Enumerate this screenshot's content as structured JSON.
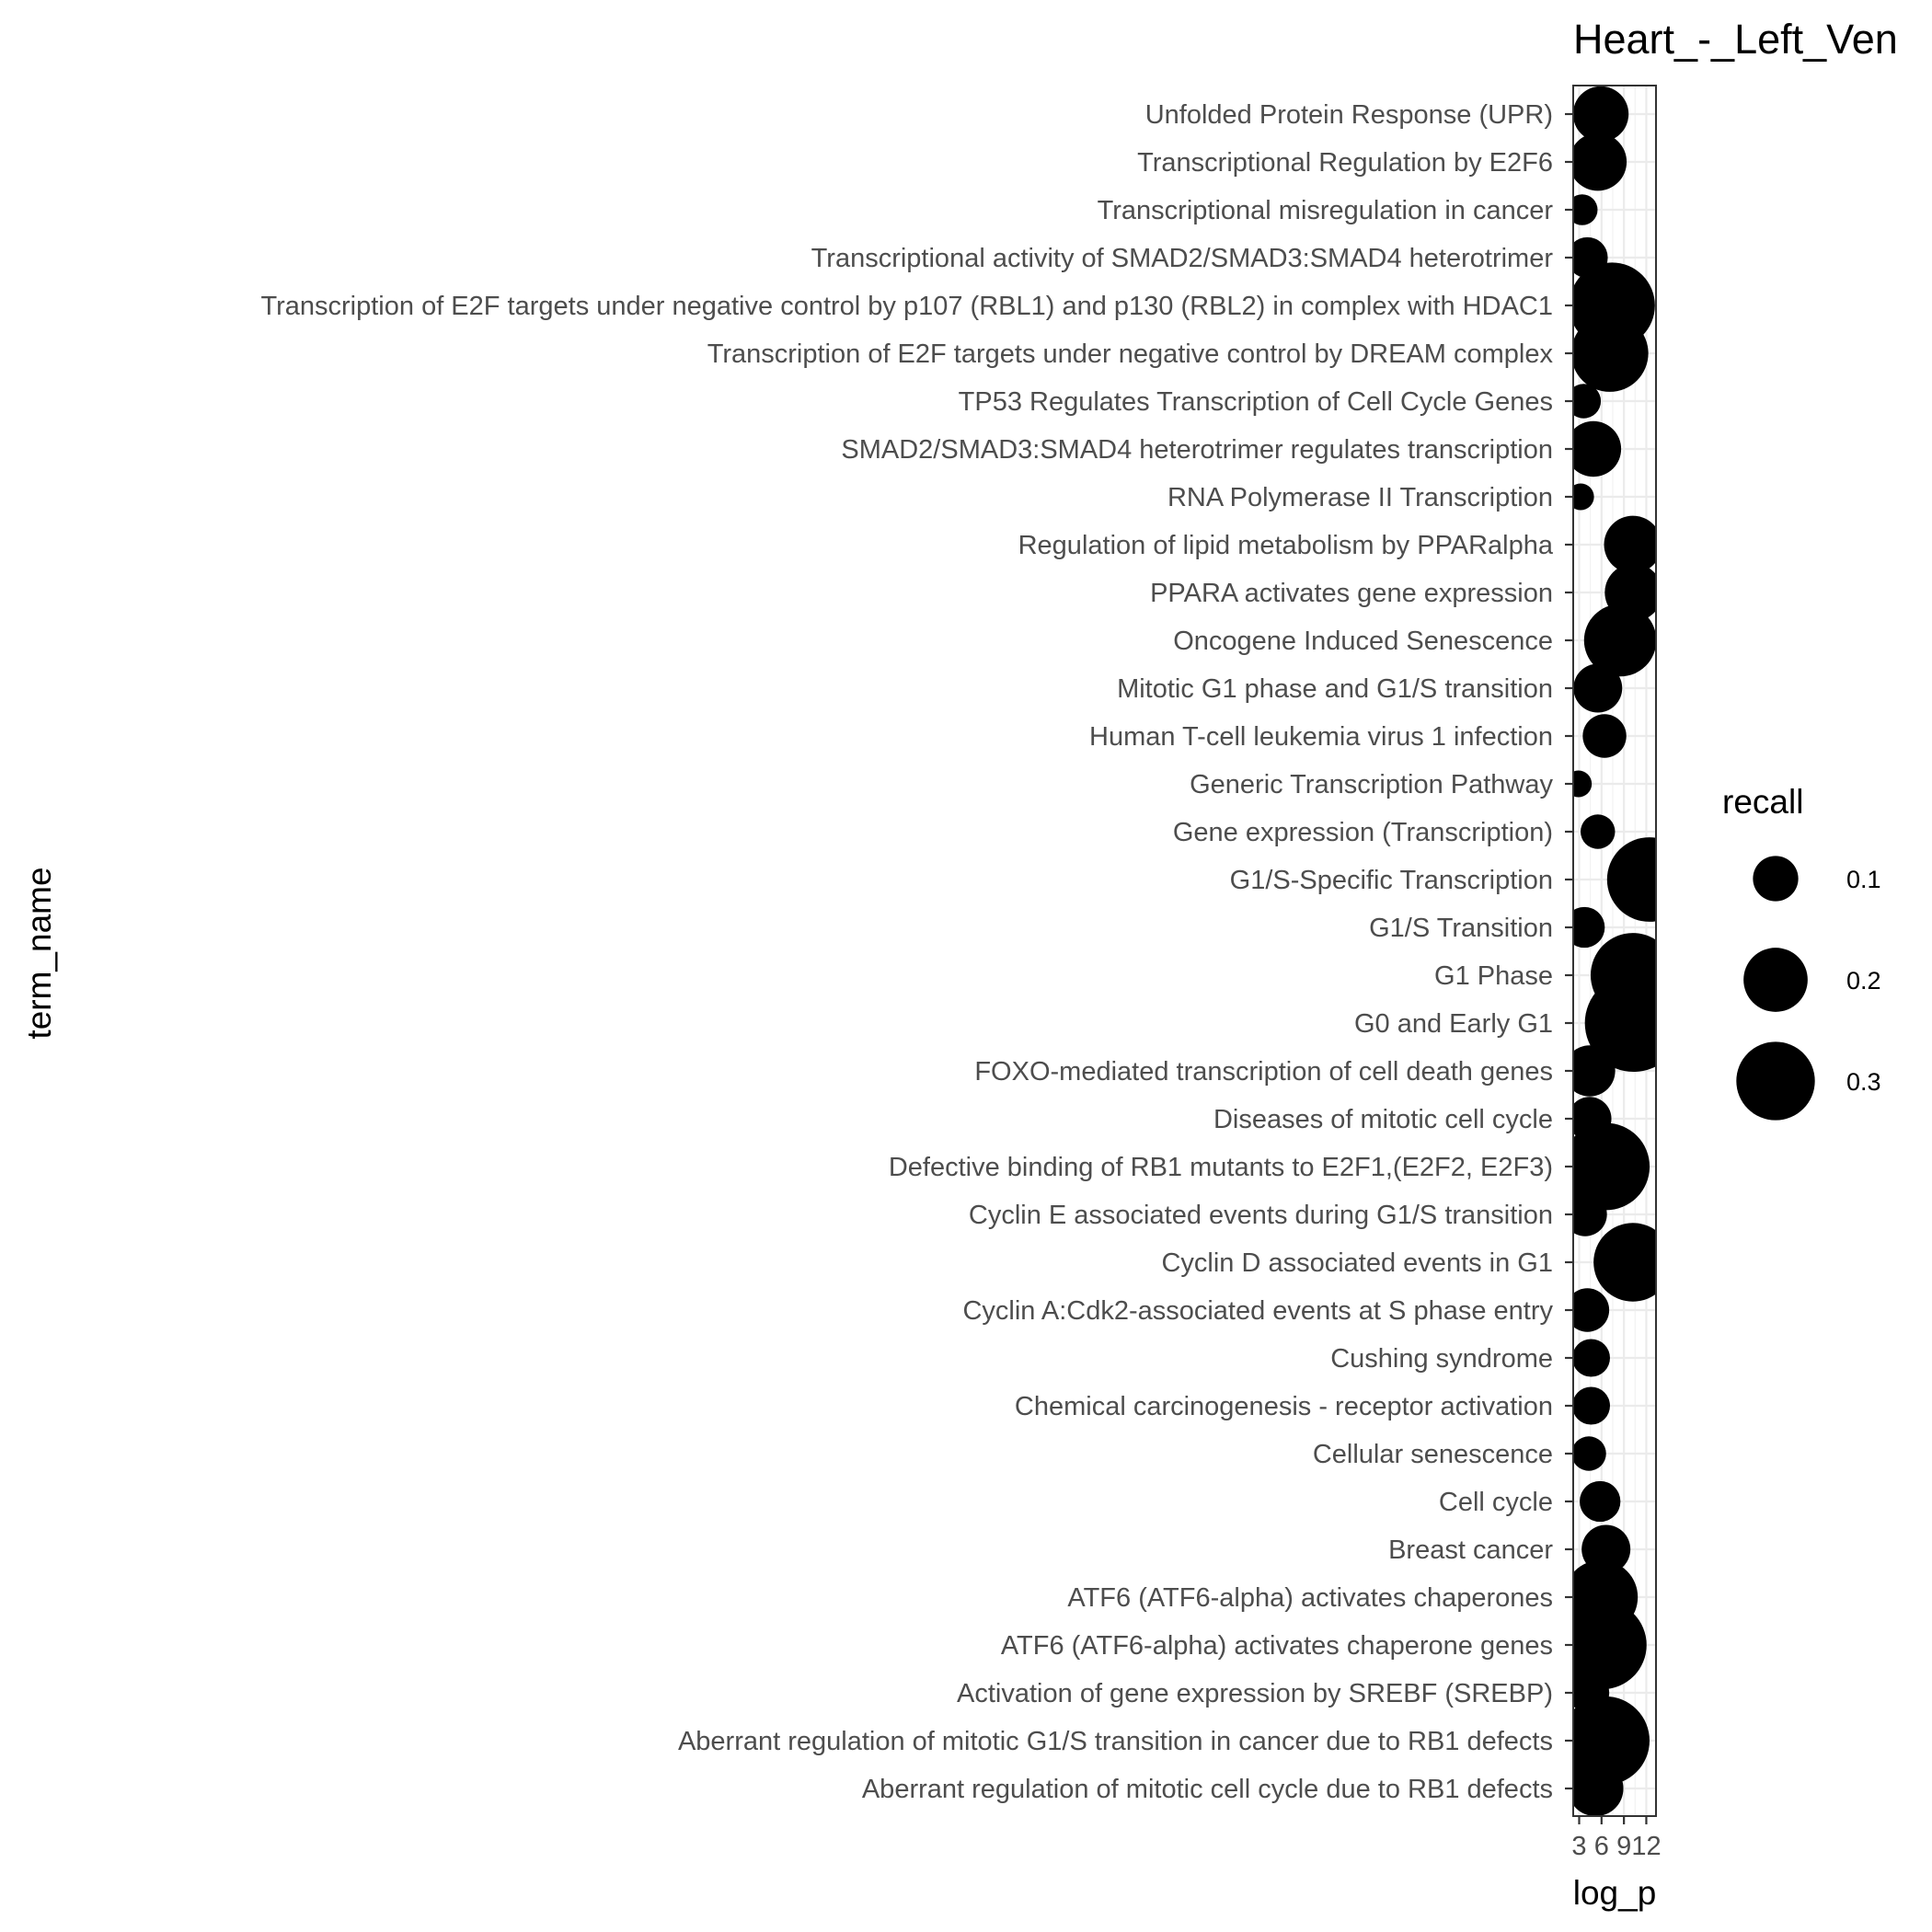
{
  "chart_data": {
    "type": "scatter",
    "title": "Heart_-_Left_Ven",
    "xlabel": "log_p",
    "ylabel": "term_name",
    "xlim": [
      2.2,
      13.3
    ],
    "x_ticks": [
      3,
      6,
      9,
      12
    ],
    "x_tick_labels": [
      "3",
      "6",
      "9",
      "12"
    ],
    "grid": true,
    "size_variable": "recall",
    "legend_position": "right",
    "legend": {
      "title": "recall",
      "entries": [
        {
          "label": "0.1",
          "value": 0.1
        },
        {
          "label": "0.2",
          "value": 0.2
        },
        {
          "label": "0.3",
          "value": 0.3
        }
      ]
    },
    "points": [
      {
        "term_name": "Unfolded Protein Response (UPR)",
        "log_p": 5.9,
        "recall": 0.13
      },
      {
        "term_name": "Transcriptional Regulation by E2F6",
        "log_p": 5.5,
        "recall": 0.14
      },
      {
        "term_name": "Transcriptional misregulation in cancer",
        "log_p": 3.4,
        "recall": 0.04
      },
      {
        "term_name": "Transcriptional activity of SMAD2/SMAD3:SMAD4 heterotrimer",
        "log_p": 4.1,
        "recall": 0.07
      },
      {
        "term_name": "Transcription of E2F targets under negative control by p107 (RBL1) and p130 (RBL2) in complex with HDAC1",
        "log_p": 7.4,
        "recall": 0.31
      },
      {
        "term_name": "Transcription of E2F targets under negative control by DREAM complex",
        "log_p": 7.1,
        "recall": 0.25
      },
      {
        "term_name": "TP53 Regulates Transcription of Cell Cycle Genes",
        "log_p": 3.6,
        "recall": 0.05
      },
      {
        "term_name": "SMAD2/SMAD3:SMAD4 heterotrimer regulates transcription",
        "log_p": 4.9,
        "recall": 0.13
      },
      {
        "term_name": "RNA Polymerase II Transcription",
        "log_p": 3.2,
        "recall": 0.03
      },
      {
        "term_name": "Regulation of lipid metabolism by PPARalpha",
        "log_p": 10.2,
        "recall": 0.14
      },
      {
        "term_name": "PPARA activates gene expression",
        "log_p": 10.3,
        "recall": 0.14
      },
      {
        "term_name": "Oncogene Induced Senescence",
        "log_p": 8.5,
        "recall": 0.22
      },
      {
        "term_name": "Mitotic G1 phase and G1/S transition",
        "log_p": 5.5,
        "recall": 0.1
      },
      {
        "term_name": "Human T-cell leukemia virus 1 infection",
        "log_p": 6.4,
        "recall": 0.08
      },
      {
        "term_name": "Generic Transcription Pathway",
        "log_p": 2.9,
        "recall": 0.03
      },
      {
        "term_name": "Gene expression (Transcription)",
        "log_p": 5.5,
        "recall": 0.05
      },
      {
        "term_name": "G1/S-Specific Transcription",
        "log_p": 12.4,
        "recall": 0.3
      },
      {
        "term_name": "G1/S Transition",
        "log_p": 3.7,
        "recall": 0.07
      },
      {
        "term_name": "G1 Phase",
        "log_p": 10.2,
        "recall": 0.3
      },
      {
        "term_name": "G0 and Early G1",
        "log_p": 10.3,
        "recall": 0.4
      },
      {
        "term_name": "FOXO-mediated transcription of cell death genes",
        "log_p": 4.4,
        "recall": 0.11
      },
      {
        "term_name": "Diseases of mitotic cell cycle",
        "log_p": 4.4,
        "recall": 0.08
      },
      {
        "term_name": "Defective binding of RB1 mutants to E2F1,(E2F2, E2F3)",
        "log_p": 6.6,
        "recall": 0.32
      },
      {
        "term_name": "Cyclin E associated events during G1/S transition",
        "log_p": 3.8,
        "recall": 0.08
      },
      {
        "term_name": "Cyclin D associated events in G1",
        "log_p": 10.2,
        "recall": 0.26
      },
      {
        "term_name": "Cyclin A:Cdk2-associated events at S phase entry",
        "log_p": 4.1,
        "recall": 0.08
      },
      {
        "term_name": "Cushing syndrome",
        "log_p": 4.6,
        "recall": 0.06
      },
      {
        "term_name": "Chemical carcinogenesis - receptor activation",
        "log_p": 4.6,
        "recall": 0.06
      },
      {
        "term_name": "Cellular senescence",
        "log_p": 4.3,
        "recall": 0.05
      },
      {
        "term_name": "Cell cycle",
        "log_p": 5.8,
        "recall": 0.07
      },
      {
        "term_name": "Breast cancer",
        "log_p": 6.6,
        "recall": 0.1
      },
      {
        "term_name": "ATF6 (ATF6-alpha) activates chaperones",
        "log_p": 5.9,
        "recall": 0.23
      },
      {
        "term_name": "ATF6 (ATF6-alpha) activates chaperone genes",
        "log_p": 6.1,
        "recall": 0.33
      },
      {
        "term_name": "Activation of gene expression by SREBF (SREBP)",
        "log_p": 4.3,
        "recall": 0.07
      },
      {
        "term_name": "Aberrant regulation of mitotic G1/S transition in cancer due to RB1 defects",
        "log_p": 6.5,
        "recall": 0.33
      },
      {
        "term_name": "Aberrant regulation of mitotic cell cycle due to RB1 defects",
        "log_p": 5.2,
        "recall": 0.13
      }
    ]
  }
}
